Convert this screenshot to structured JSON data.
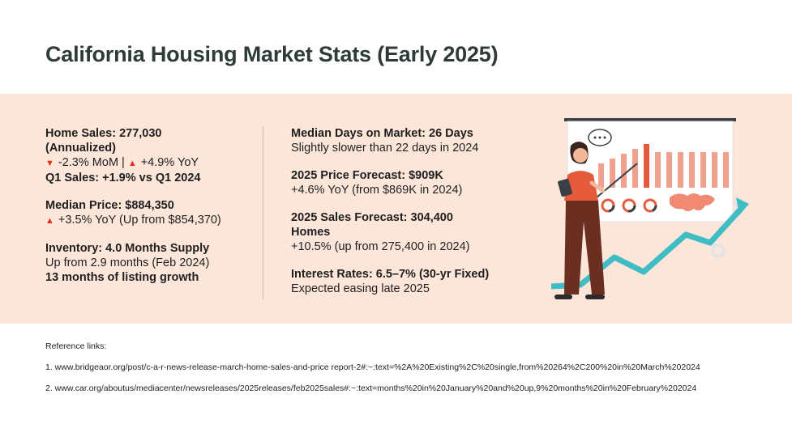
{
  "title": "California Housing Market Stats (Early 2025)",
  "left": {
    "sales_title": "Home Sales: 277,030",
    "sales_title2": "(Annualized)",
    "mom": "-2.3% MoM",
    "sep": "|",
    "yoy": "+4.9% YoY",
    "q1": "Q1 Sales: +1.9% vs Q1 2024",
    "price_title": "Median Price: $884,350",
    "price_yoy": "+3.5% YoY (Up from $854,370)",
    "inv_title": "Inventory: 4.0 Months Supply",
    "inv_line": "Up from 2.9 months (Feb 2024)",
    "inv_growth": "13 months of listing growth"
  },
  "right": {
    "dom_title": "Median Days on Market: 26 Days",
    "dom_line": "Slightly slower than 22 days in 2024",
    "pf_title": "2025 Price Forecast: $909K",
    "pf_line": "+4.6% YoY (from $869K in 2024)",
    "sf_title": "2025 Sales Forecast: 304,400",
    "sf_title2": "Homes",
    "sf_line": "+10.5% (up from 275,400 in 2024)",
    "ir_title": "Interest Rates: 6.5–7% (30-yr Fixed)",
    "ir_line": "Expected easing late 2025"
  },
  "icons": {
    "down": "down-triangle-icon",
    "up": "up-triangle-icon"
  },
  "colors": {
    "panel": "#fce6da",
    "accent": "#e65a3c",
    "teal": "#3fbcc4",
    "title": "#2f3b3a"
  },
  "references": {
    "heading": "Reference links:",
    "items": [
      "1. www.bridgeaor.org/post/c-a-r-news-release-march-home-sales-and-price report-2#:~:text=%2A%20Existing%2C%20single,from%20264%2C200%20in%20March%202024",
      "2. www.car.org/aboutus/mediacenter/newsreleases/2025releases/feb2025sales#:~:text=months%20in%20January%20and%20up,9%20months%20in%20February%202024"
    ]
  }
}
